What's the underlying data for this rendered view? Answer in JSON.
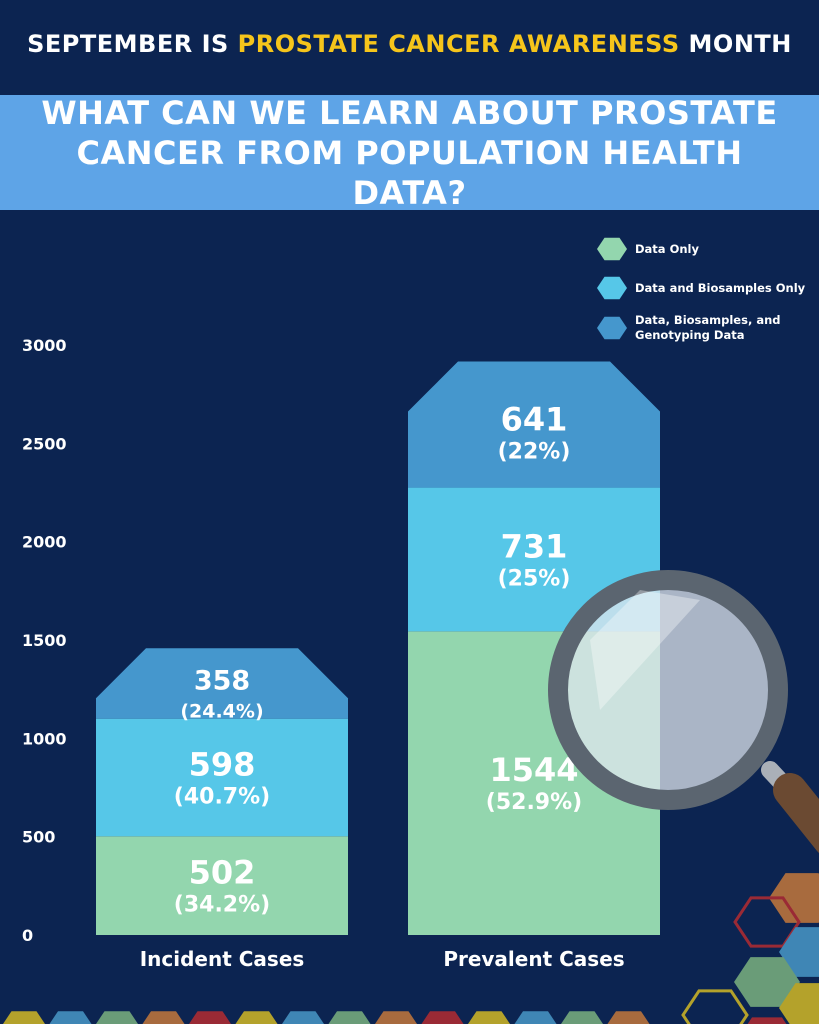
{
  "header": {
    "prefix": "SEPTEMBER IS ",
    "highlight": "PROSTATE CANCER AWARENESS",
    "suffix": " MONTH"
  },
  "title": "WHAT CAN WE LEARN ABOUT PROSTATE CANCER FROM POPULATION HEALTH DATA?",
  "colors": {
    "background": "#0c2451",
    "band": "#5ea4e7",
    "highlight": "#f6c51b"
  },
  "chart_data": {
    "type": "bar",
    "stacked": true,
    "categories": [
      "Incident Cases",
      "Prevalent Cases"
    ],
    "series": [
      {
        "name": "Data Only",
        "color": "#93d6ae",
        "values": [
          502,
          1544
        ],
        "labels": [
          "(34.2%)",
          "(52.9%)"
        ]
      },
      {
        "name": "Data and Biosamples Only",
        "color": "#56c7e8",
        "values": [
          598,
          731
        ],
        "labels": [
          "(40.7%)",
          "(25%)"
        ]
      },
      {
        "name": "Data, Biosamples, and Genotyping Data",
        "color": "#4597cd",
        "values": [
          358,
          641
        ],
        "labels": [
          "(24.4%)",
          "(22%)"
        ]
      }
    ],
    "yticks": [
      "0",
      "500",
      "1000",
      "1500",
      "2000",
      "2500",
      "3000"
    ],
    "ylim": [
      0,
      3000
    ],
    "legend": "top-right",
    "grid": false
  }
}
